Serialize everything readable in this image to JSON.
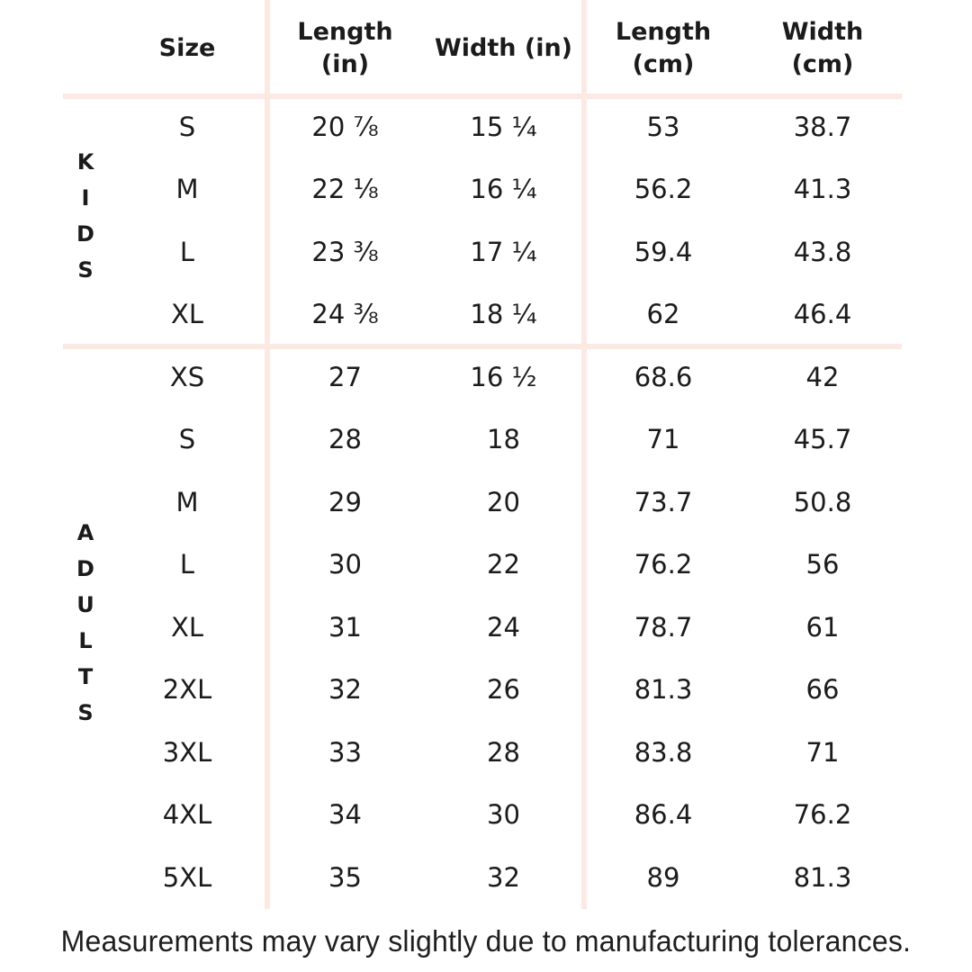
{
  "colors": {
    "background": "#ffffff",
    "divider": "#fbe9e2",
    "text": "#1b1b1b"
  },
  "table": {
    "columns": [
      {
        "id": "size",
        "lines": [
          "Size"
        ]
      },
      {
        "id": "length_in",
        "lines": [
          "Length",
          "(in)"
        ]
      },
      {
        "id": "width_in",
        "lines": [
          "Width (in)"
        ]
      },
      {
        "id": "length_cm",
        "lines": [
          "Length",
          "(cm)"
        ]
      },
      {
        "id": "width_cm",
        "lines": [
          "Width",
          "(cm)"
        ]
      }
    ],
    "groups": [
      {
        "label": "KIDS"
      },
      {
        "label": "ADULTS"
      }
    ],
    "rows": [
      {
        "group": "KIDS",
        "size": "S",
        "length_in": "20 ⅞",
        "width_in": "15 ¼",
        "length_cm": "53",
        "width_cm": "38.7"
      },
      {
        "group": "KIDS",
        "size": "M",
        "length_in": "22 ⅛",
        "width_in": "16 ¼",
        "length_cm": "56.2",
        "width_cm": "41.3"
      },
      {
        "group": "KIDS",
        "size": "L",
        "length_in": "23 ⅜",
        "width_in": "17 ¼",
        "length_cm": "59.4",
        "width_cm": "43.8"
      },
      {
        "group": "KIDS",
        "size": "XL",
        "length_in": "24 ⅜",
        "width_in": "18 ¼",
        "length_cm": "62",
        "width_cm": "46.4"
      },
      {
        "group": "ADULTS",
        "size": "XS",
        "length_in": "27",
        "width_in": "16 ½",
        "length_cm": "68.6",
        "width_cm": "42"
      },
      {
        "group": "ADULTS",
        "size": "S",
        "length_in": "28",
        "width_in": "18",
        "length_cm": "71",
        "width_cm": "45.7"
      },
      {
        "group": "ADULTS",
        "size": "M",
        "length_in": "29",
        "width_in": "20",
        "length_cm": "73.7",
        "width_cm": "50.8"
      },
      {
        "group": "ADULTS",
        "size": "L",
        "length_in": "30",
        "width_in": "22",
        "length_cm": "76.2",
        "width_cm": "56"
      },
      {
        "group": "ADULTS",
        "size": "XL",
        "length_in": "31",
        "width_in": "24",
        "length_cm": "78.7",
        "width_cm": "61"
      },
      {
        "group": "ADULTS",
        "size": "2XL",
        "length_in": "32",
        "width_in": "26",
        "length_cm": "81.3",
        "width_cm": "66"
      },
      {
        "group": "ADULTS",
        "size": "3XL",
        "length_in": "33",
        "width_in": "28",
        "length_cm": "83.8",
        "width_cm": "71"
      },
      {
        "group": "ADULTS",
        "size": "4XL",
        "length_in": "34",
        "width_in": "30",
        "length_cm": "86.4",
        "width_cm": "76.2"
      },
      {
        "group": "ADULTS",
        "size": "5XL",
        "length_in": "35",
        "width_in": "32",
        "length_cm": "89",
        "width_cm": "81.3"
      }
    ]
  },
  "chart_data": {
    "type": "table",
    "title": "",
    "columns": [
      "Size",
      "Length (in)",
      "Width (in)",
      "Length (cm)",
      "Width (cm)"
    ],
    "row_groups": {
      "KIDS": [
        "S",
        "M",
        "L",
        "XL"
      ],
      "ADULTS": [
        "XS",
        "S",
        "M",
        "L",
        "XL",
        "2XL",
        "3XL",
        "4XL",
        "5XL"
      ]
    },
    "rows": [
      [
        "S",
        "20 ⅞",
        "15 ¼",
        "53",
        "38.7"
      ],
      [
        "M",
        "22 ⅛",
        "16 ¼",
        "56.2",
        "41.3"
      ],
      [
        "L",
        "23 ⅜",
        "17 ¼",
        "59.4",
        "43.8"
      ],
      [
        "XL",
        "24 ⅜",
        "18 ¼",
        "62",
        "46.4"
      ],
      [
        "XS",
        "27",
        "16 ½",
        "68.6",
        "42"
      ],
      [
        "S",
        "28",
        "18",
        "71",
        "45.7"
      ],
      [
        "M",
        "29",
        "20",
        "73.7",
        "50.8"
      ],
      [
        "L",
        "30",
        "22",
        "76.2",
        "56"
      ],
      [
        "XL",
        "31",
        "24",
        "78.7",
        "61"
      ],
      [
        "2XL",
        "32",
        "26",
        "81.3",
        "66"
      ],
      [
        "3XL",
        "33",
        "28",
        "83.8",
        "71"
      ],
      [
        "4XL",
        "34",
        "30",
        "86.4",
        "76.2"
      ],
      [
        "5XL",
        "35",
        "32",
        "89",
        "81.3"
      ]
    ]
  },
  "footer": {
    "note": "Measurements may vary slightly due to manufacturing tolerances."
  }
}
